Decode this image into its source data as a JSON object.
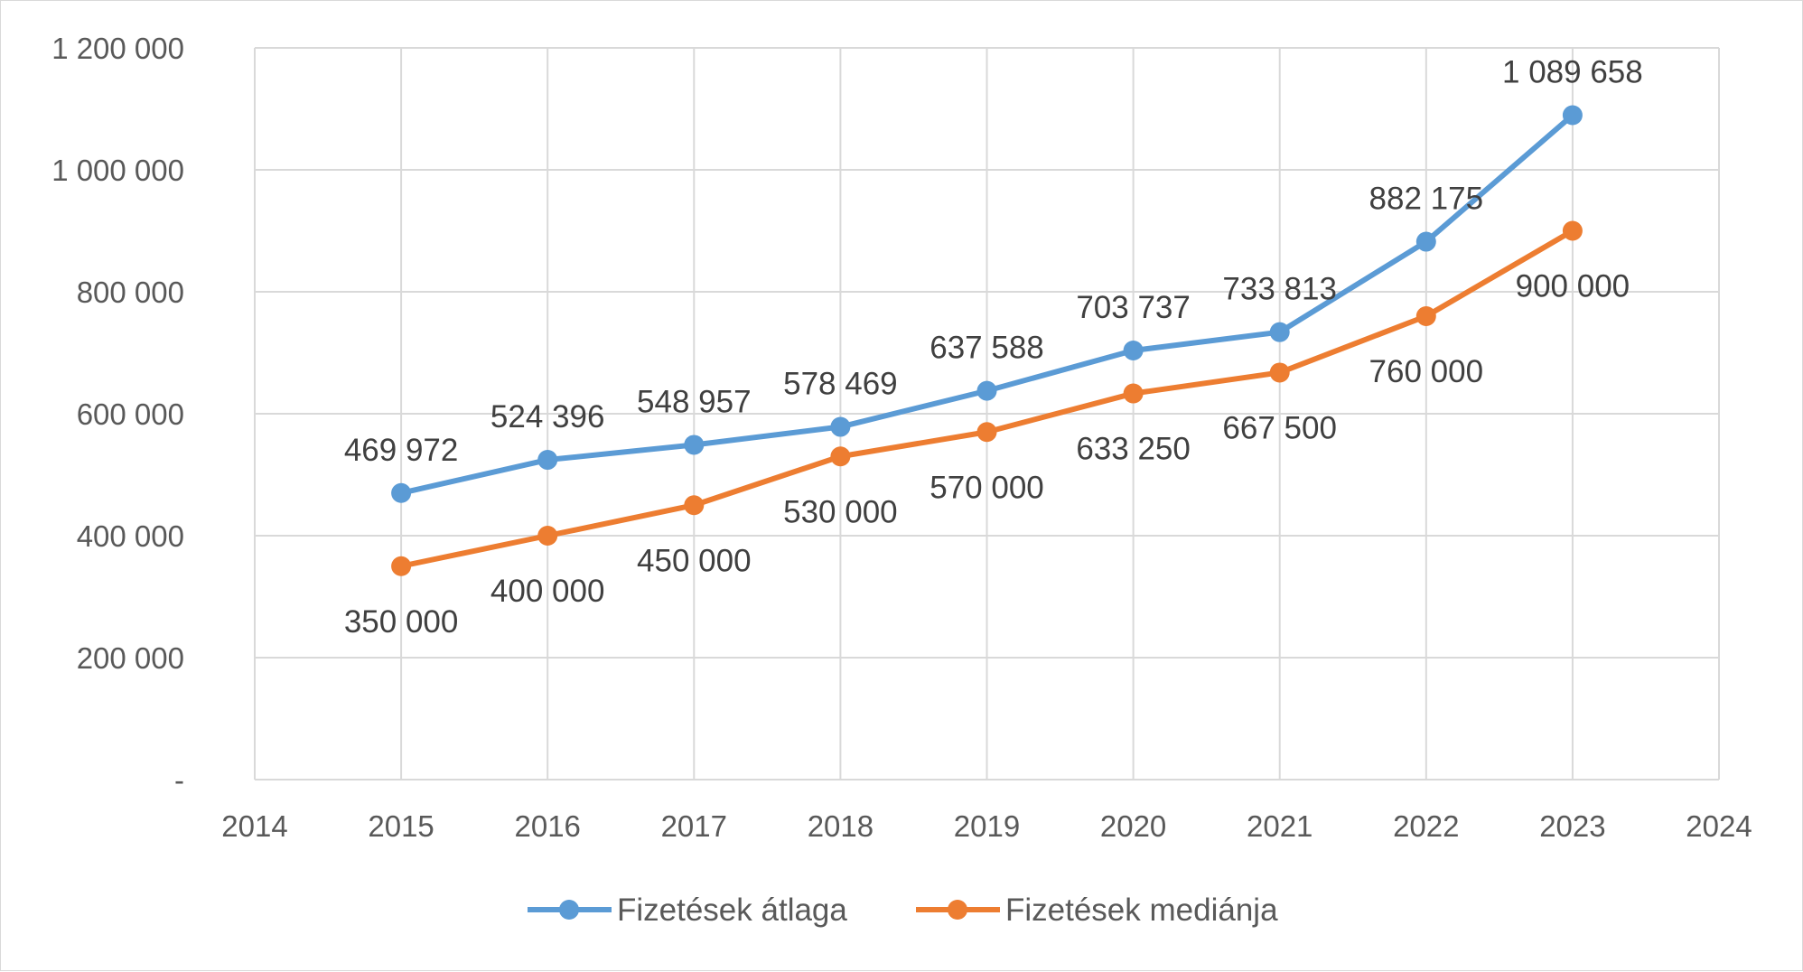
{
  "chart_data": {
    "type": "line",
    "title": "",
    "xlabel": "",
    "ylabel": "",
    "xlim": [
      2014,
      2024
    ],
    "ylim": [
      0,
      1200000
    ],
    "x_ticks": [
      "2014",
      "2015",
      "2016",
      "2017",
      "2018",
      "2019",
      "2020",
      "2021",
      "2022",
      "2023",
      "2024"
    ],
    "y_ticks": [
      "-",
      "200 000",
      "400 000",
      "600 000",
      "800 000",
      "1 000 000",
      "1 200 000"
    ],
    "grid": true,
    "legend_position": "bottom",
    "x": [
      2015,
      2016,
      2017,
      2018,
      2019,
      2020,
      2021,
      2022,
      2023
    ],
    "series": [
      {
        "name": "Fizetések átlaga",
        "color": "#5b9bd5",
        "values": [
          469972,
          524396,
          548957,
          578469,
          637588,
          703737,
          733813,
          882175,
          1089658
        ],
        "labels": [
          "469 972",
          "524 396",
          "548 957",
          "578 469",
          "637 588",
          "703 737",
          "733 813",
          "882 175",
          "1 089 658"
        ],
        "label_position": "above"
      },
      {
        "name": "Fizetések mediánja",
        "color": "#ed7d31",
        "values": [
          350000,
          400000,
          450000,
          530000,
          570000,
          633250,
          667500,
          760000,
          900000
        ],
        "labels": [
          "350 000",
          "400 000",
          "450 000",
          "530 000",
          "570 000",
          "633 250",
          "667 500",
          "760 000",
          "900 000"
        ],
        "label_position": "below"
      }
    ]
  }
}
